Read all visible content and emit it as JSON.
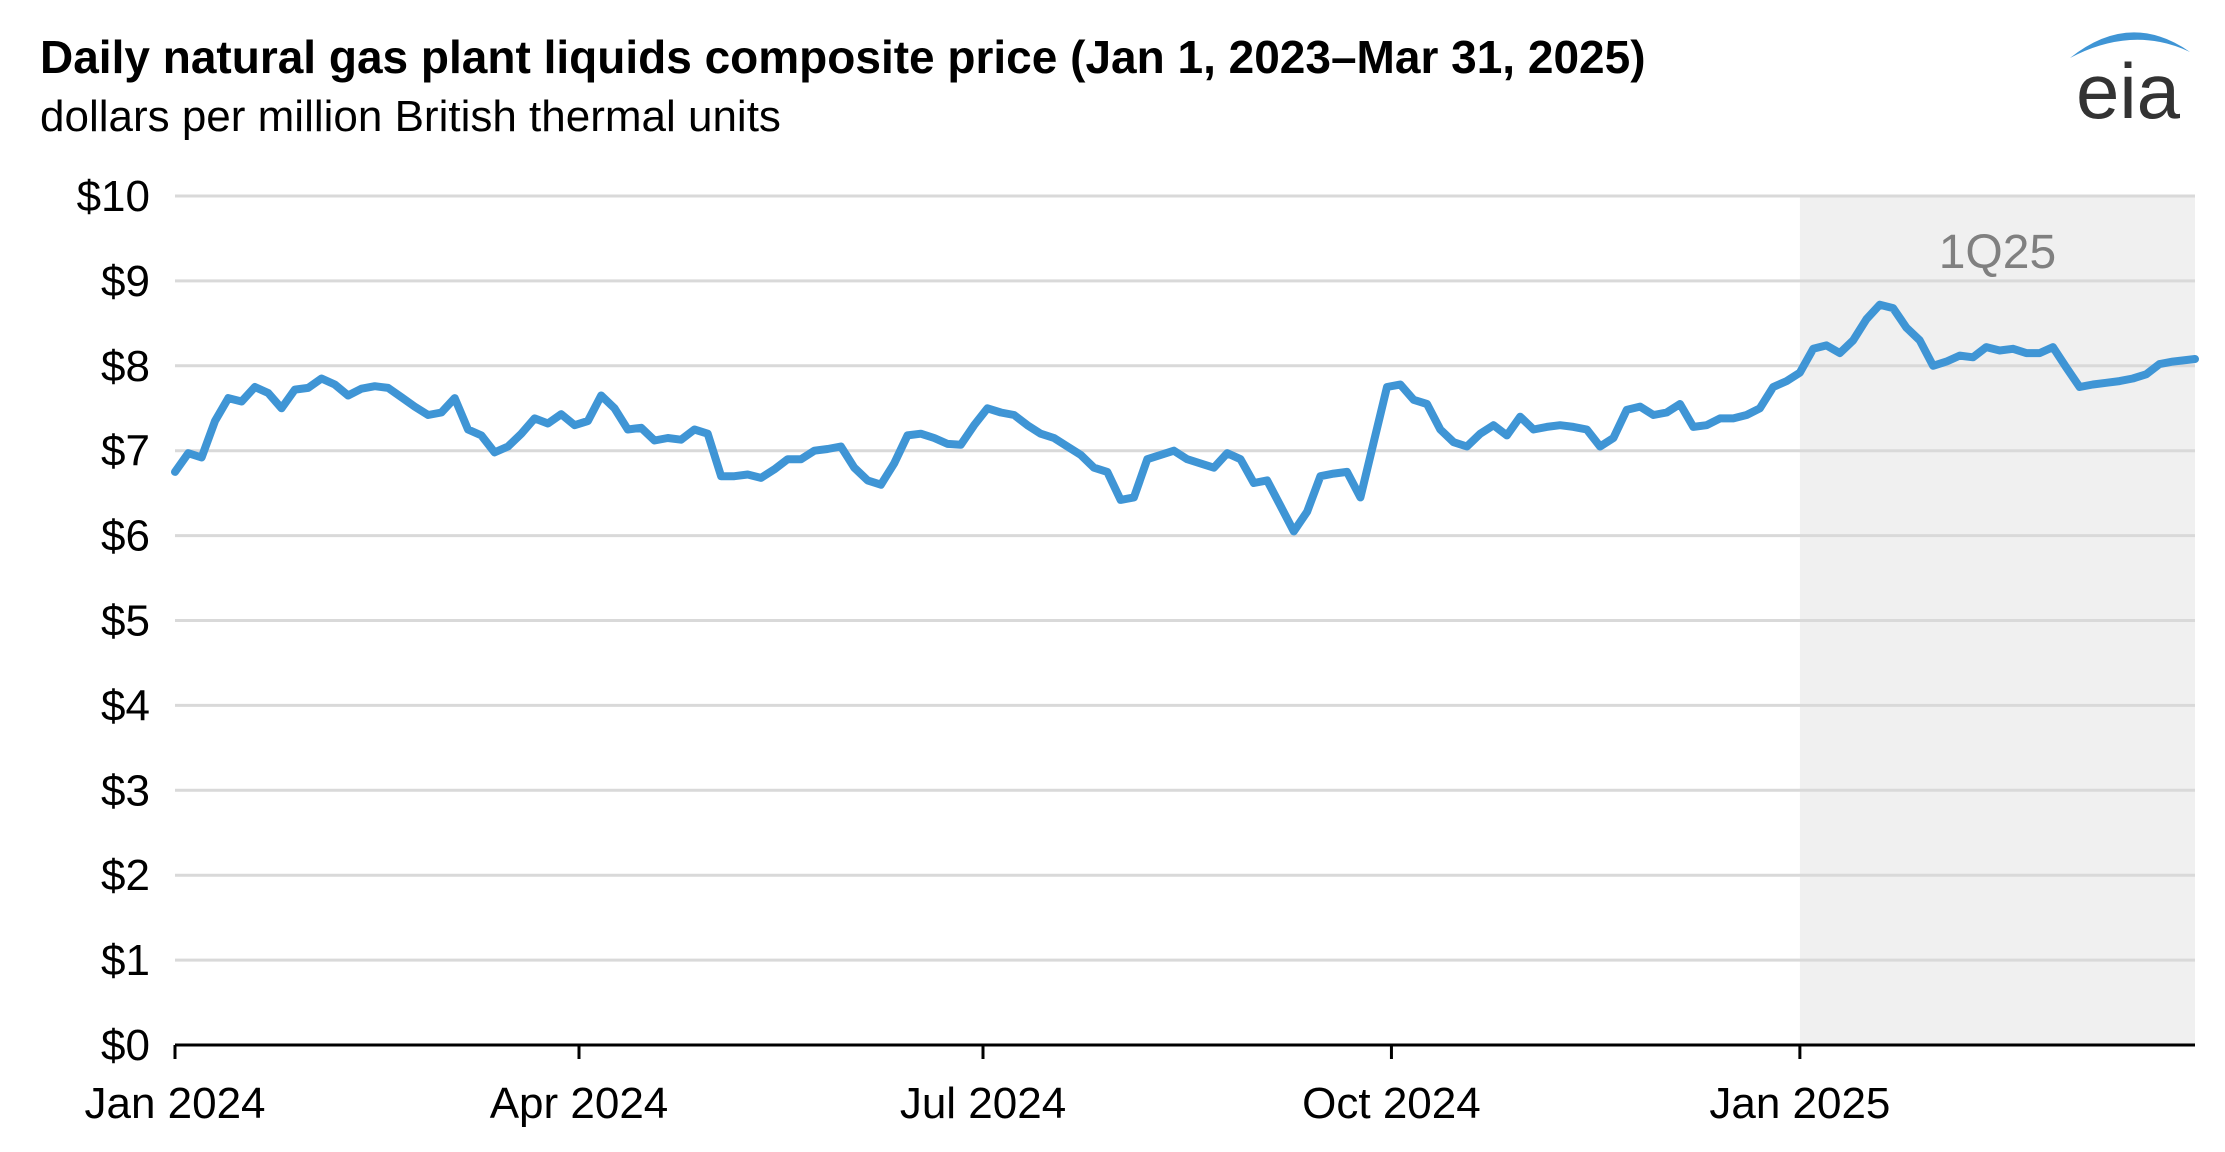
{
  "title": "Daily natural gas plant liquids composite price (Jan 1, 2023–Mar 31, 2025)",
  "subtitle": "dollars per million British thermal units",
  "logo_text": "eia",
  "colors": {
    "line": "#3f95d5",
    "grid": "#d9d9d9",
    "shade": "#f0f0f0",
    "shade_label": "#808080",
    "logo_arc": "#3f95d5",
    "logo_text": "#333333"
  },
  "chart_data": {
    "type": "line",
    "title": "Daily natural gas plant liquids composite price (Jan 1, 2023–Mar 31, 2025)",
    "ylabel": "dollars per million British thermal units",
    "ylim": [
      0,
      10
    ],
    "y_ticks": [
      "$0",
      "$1",
      "$2",
      "$3",
      "$4",
      "$5",
      "$6",
      "$7",
      "$8",
      "$9",
      "$10"
    ],
    "x_ticks": [
      {
        "label": "Jan 2024",
        "date": "2024-01-01"
      },
      {
        "label": "Apr 2024",
        "date": "2024-04-01"
      },
      {
        "label": "Jul 2024",
        "date": "2024-07-01"
      },
      {
        "label": "Oct 2024",
        "date": "2024-10-01"
      },
      {
        "label": "Jan 2025",
        "date": "2025-01-01"
      }
    ],
    "xlim": [
      "2024-01-01",
      "2025-03-31"
    ],
    "grid": true,
    "shaded_region": {
      "label": "1Q25",
      "start": "2025-01-01",
      "end": "2025-03-31"
    },
    "series": [
      {
        "x": [
          "2024-01-01",
          "2024-01-04",
          "2024-01-07",
          "2024-01-10",
          "2024-01-13",
          "2024-01-16",
          "2024-01-19",
          "2024-01-22",
          "2024-01-25",
          "2024-01-28",
          "2024-01-31",
          "2024-02-03",
          "2024-02-06",
          "2024-02-09",
          "2024-02-12",
          "2024-02-15",
          "2024-02-18",
          "2024-02-21",
          "2024-02-24",
          "2024-02-27",
          "2024-03-01",
          "2024-03-04",
          "2024-03-07",
          "2024-03-10",
          "2024-03-13",
          "2024-03-16",
          "2024-03-19",
          "2024-03-22",
          "2024-03-25",
          "2024-03-28",
          "2024-03-31",
          "2024-04-03",
          "2024-04-06",
          "2024-04-09",
          "2024-04-12",
          "2024-04-15",
          "2024-04-18",
          "2024-04-21",
          "2024-04-24",
          "2024-04-27",
          "2024-04-30",
          "2024-05-03",
          "2024-05-06",
          "2024-05-09",
          "2024-05-12",
          "2024-05-15",
          "2024-05-18",
          "2024-05-21",
          "2024-05-24",
          "2024-05-27",
          "2024-05-30",
          "2024-06-02",
          "2024-06-05",
          "2024-06-08",
          "2024-06-11",
          "2024-06-14",
          "2024-06-17",
          "2024-06-20",
          "2024-06-23",
          "2024-06-26",
          "2024-06-29",
          "2024-07-02",
          "2024-07-05",
          "2024-07-08",
          "2024-07-11",
          "2024-07-14",
          "2024-07-17",
          "2024-07-20",
          "2024-07-23",
          "2024-07-26",
          "2024-07-29",
          "2024-08-01",
          "2024-08-04",
          "2024-08-07",
          "2024-08-10",
          "2024-08-13",
          "2024-08-16",
          "2024-08-19",
          "2024-08-22",
          "2024-08-25",
          "2024-08-28",
          "2024-08-31",
          "2024-09-03",
          "2024-09-06",
          "2024-09-09",
          "2024-09-12",
          "2024-09-15",
          "2024-09-18",
          "2024-09-21",
          "2024-09-24",
          "2024-09-27",
          "2024-09-30",
          "2024-10-03",
          "2024-10-06",
          "2024-10-09",
          "2024-10-12",
          "2024-10-15",
          "2024-10-18",
          "2024-10-21",
          "2024-10-24",
          "2024-10-27",
          "2024-10-30",
          "2024-11-02",
          "2024-11-05",
          "2024-11-08",
          "2024-11-11",
          "2024-11-14",
          "2024-11-17",
          "2024-11-20",
          "2024-11-23",
          "2024-11-26",
          "2024-11-29",
          "2024-12-02",
          "2024-12-05",
          "2024-12-08",
          "2024-12-11",
          "2024-12-14",
          "2024-12-17",
          "2024-12-20",
          "2024-12-23",
          "2024-12-26",
          "2024-12-29",
          "2025-01-01",
          "2025-01-04",
          "2025-01-07",
          "2025-01-10",
          "2025-01-13",
          "2025-01-16",
          "2025-01-19",
          "2025-01-22",
          "2025-01-25",
          "2025-01-28",
          "2025-01-31",
          "2025-02-03",
          "2025-02-06",
          "2025-02-09",
          "2025-02-12",
          "2025-02-15",
          "2025-02-18",
          "2025-02-21",
          "2025-02-24",
          "2025-02-27",
          "2025-03-02",
          "2025-03-05",
          "2025-03-08",
          "2025-03-11",
          "2025-03-14",
          "2025-03-17",
          "2025-03-20",
          "2025-03-23",
          "2025-03-26",
          "2025-03-31"
        ],
        "values": [
          6.75,
          6.97,
          6.92,
          7.35,
          7.62,
          7.58,
          7.75,
          7.68,
          7.5,
          7.72,
          7.74,
          7.85,
          7.78,
          7.65,
          7.73,
          7.76,
          7.74,
          7.63,
          7.52,
          7.42,
          7.45,
          7.62,
          7.25,
          7.18,
          6.98,
          7.05,
          7.2,
          7.38,
          7.32,
          7.43,
          7.3,
          7.35,
          7.65,
          7.5,
          7.25,
          7.27,
          7.12,
          7.15,
          7.13,
          7.25,
          7.2,
          6.7,
          6.7,
          6.72,
          6.68,
          6.78,
          6.9,
          6.9,
          7.0,
          7.02,
          7.05,
          6.8,
          6.65,
          6.6,
          6.85,
          7.18,
          7.2,
          7.15,
          7.08,
          7.07,
          7.3,
          7.5,
          7.45,
          7.42,
          7.3,
          7.2,
          7.15,
          7.05,
          6.95,
          6.8,
          6.75,
          6.42,
          6.45,
          6.9,
          6.95,
          7.0,
          6.9,
          6.85,
          6.8,
          6.97,
          6.9,
          6.62,
          6.65,
          6.35,
          6.05,
          6.28,
          6.7,
          6.73,
          6.75,
          6.45,
          7.1,
          7.75,
          7.78,
          7.6,
          7.55,
          7.25,
          7.1,
          7.05,
          7.2,
          7.3,
          7.18,
          7.4,
          7.25,
          7.28,
          7.3,
          7.28,
          7.25,
          7.05,
          7.15,
          7.48,
          7.52,
          7.42,
          7.45,
          7.55,
          7.28,
          7.3,
          7.38,
          7.38,
          7.42,
          7.5,
          7.75,
          7.82,
          7.92,
          8.2,
          8.24,
          8.15,
          8.3,
          8.55,
          8.72,
          8.68,
          8.45,
          8.3,
          8.0,
          8.05,
          8.12,
          8.1,
          8.22,
          8.18,
          8.2,
          8.15,
          8.15,
          8.22,
          7.98,
          7.75,
          7.78,
          7.8,
          7.82,
          7.85,
          7.9,
          8.02,
          8.05,
          8.08
        ]
      }
    ]
  }
}
